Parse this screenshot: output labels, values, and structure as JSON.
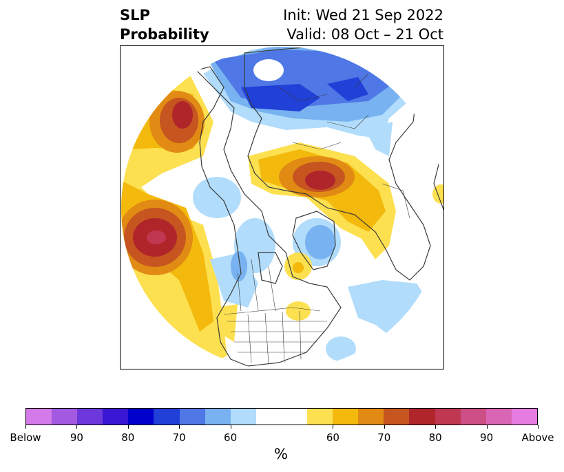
{
  "title": {
    "left_line1": "SLP",
    "left_line2": "Probability",
    "right_line1": "Init: Wed 21 Sep 2022",
    "right_line2": "Valid: 08 Oct – 21 Oct"
  },
  "colorbar": {
    "below_colors": [
      "#d57ae9",
      "#a35ae1",
      "#6c38dc",
      "#3a17d4",
      "#0000cc",
      "#2040d8",
      "#4f78e6",
      "#78b2f0",
      "#b1dcfb"
    ],
    "above_colors": [
      "#fce050",
      "#f3b90c",
      "#e18b14",
      "#c65520",
      "#b0252a",
      "#c03752",
      "#cc4f85",
      "#d966b5",
      "#e67ce1"
    ],
    "neutral_color": "#ffffff",
    "tick_labels": [
      "Below",
      "90",
      "80",
      "70",
      "60",
      "60",
      "70",
      "80",
      "90",
      "Above"
    ],
    "unit_label": "%"
  },
  "map": {
    "projection": "north-polar-stereographic",
    "region": "Northern Hemisphere / North America",
    "field": "sea-level pressure tercile probability",
    "border_color": "#3a3a3a"
  }
}
